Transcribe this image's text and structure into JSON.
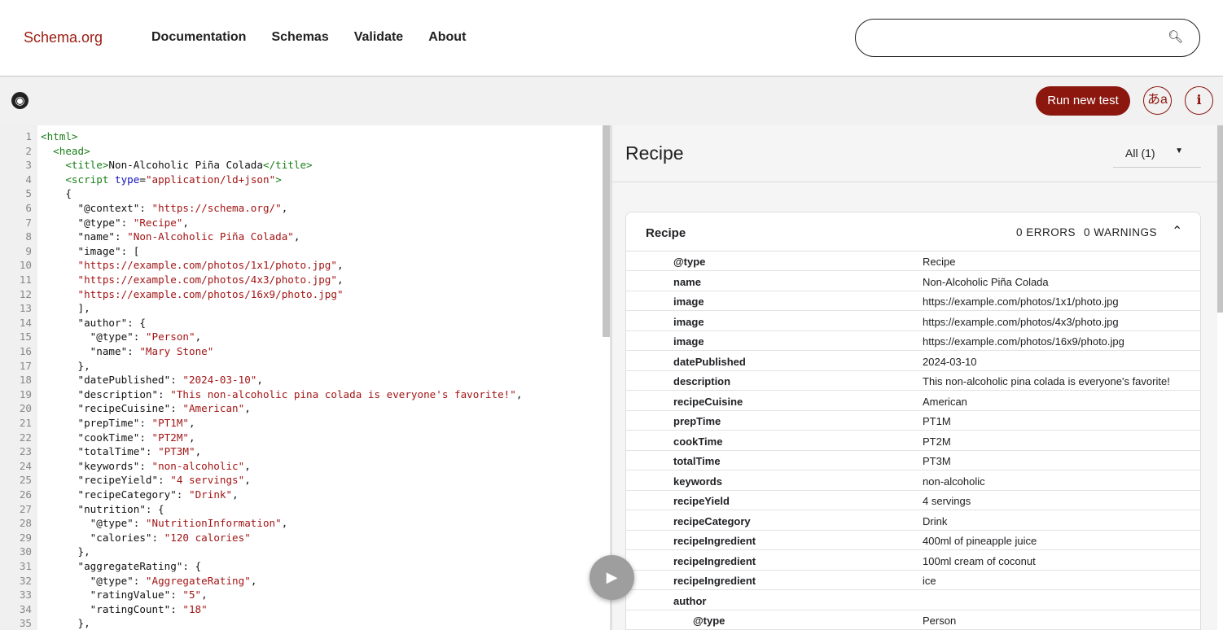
{
  "nav": {
    "logo": "Schema.org",
    "links": [
      "Documentation",
      "Schemas",
      "Validate",
      "About"
    ],
    "search_placeholder": ""
  },
  "toolbar": {
    "run_label": "Run new test",
    "lang_label": "あa",
    "info_label": "i"
  },
  "editor": {
    "lines": [
      [
        [
          "tag",
          "<html>"
        ]
      ],
      [
        [
          "txt",
          "  "
        ],
        [
          "tag",
          "<head>"
        ]
      ],
      [
        [
          "txt",
          "    "
        ],
        [
          "tag",
          "<title>"
        ],
        [
          "txt",
          "Non-Alcoholic Piña Colada"
        ],
        [
          "tag",
          "</title>"
        ]
      ],
      [
        [
          "txt",
          "    "
        ],
        [
          "tag",
          "<script "
        ],
        [
          "attr",
          "type"
        ],
        [
          "txt",
          "="
        ],
        [
          "str",
          "\"application/ld+json\""
        ],
        [
          "tag",
          ">"
        ]
      ],
      [
        [
          "txt",
          "    {"
        ]
      ],
      [
        [
          "txt",
          "      \"@context\": "
        ],
        [
          "str",
          "\"https://schema.org/\""
        ],
        [
          "txt",
          ","
        ]
      ],
      [
        [
          "txt",
          "      \"@type\": "
        ],
        [
          "str",
          "\"Recipe\""
        ],
        [
          "txt",
          ","
        ]
      ],
      [
        [
          "txt",
          "      \"name\": "
        ],
        [
          "str",
          "\"Non-Alcoholic Piña Colada\""
        ],
        [
          "txt",
          ","
        ]
      ],
      [
        [
          "txt",
          "      \"image\": ["
        ]
      ],
      [
        [
          "txt",
          "      "
        ],
        [
          "str",
          "\"https://example.com/photos/1x1/photo.jpg\""
        ],
        [
          "txt",
          ","
        ]
      ],
      [
        [
          "txt",
          "      "
        ],
        [
          "str",
          "\"https://example.com/photos/4x3/photo.jpg\""
        ],
        [
          "txt",
          ","
        ]
      ],
      [
        [
          "txt",
          "      "
        ],
        [
          "str",
          "\"https://example.com/photos/16x9/photo.jpg\""
        ]
      ],
      [
        [
          "txt",
          "      ],"
        ]
      ],
      [
        [
          "txt",
          "      \"author\": {"
        ]
      ],
      [
        [
          "txt",
          "        \"@type\": "
        ],
        [
          "str",
          "\"Person\""
        ],
        [
          "txt",
          ","
        ]
      ],
      [
        [
          "txt",
          "        \"name\": "
        ],
        [
          "str",
          "\"Mary Stone\""
        ]
      ],
      [
        [
          "txt",
          "      },"
        ]
      ],
      [
        [
          "txt",
          "      \"datePublished\": "
        ],
        [
          "str",
          "\"2024-03-10\""
        ],
        [
          "txt",
          ","
        ]
      ],
      [
        [
          "txt",
          "      \"description\": "
        ],
        [
          "str",
          "\"This non-alcoholic pina colada is everyone's favorite!\""
        ],
        [
          "txt",
          ","
        ]
      ],
      [
        [
          "txt",
          "      \"recipeCuisine\": "
        ],
        [
          "str",
          "\"American\""
        ],
        [
          "txt",
          ","
        ]
      ],
      [
        [
          "txt",
          "      \"prepTime\": "
        ],
        [
          "str",
          "\"PT1M\""
        ],
        [
          "txt",
          ","
        ]
      ],
      [
        [
          "txt",
          "      \"cookTime\": "
        ],
        [
          "str",
          "\"PT2M\""
        ],
        [
          "txt",
          ","
        ]
      ],
      [
        [
          "txt",
          "      \"totalTime\": "
        ],
        [
          "str",
          "\"PT3M\""
        ],
        [
          "txt",
          ","
        ]
      ],
      [
        [
          "txt",
          "      \"keywords\": "
        ],
        [
          "str",
          "\"non-alcoholic\""
        ],
        [
          "txt",
          ","
        ]
      ],
      [
        [
          "txt",
          "      \"recipeYield\": "
        ],
        [
          "str",
          "\"4 servings\""
        ],
        [
          "txt",
          ","
        ]
      ],
      [
        [
          "txt",
          "      \"recipeCategory\": "
        ],
        [
          "str",
          "\"Drink\""
        ],
        [
          "txt",
          ","
        ]
      ],
      [
        [
          "txt",
          "      \"nutrition\": {"
        ]
      ],
      [
        [
          "txt",
          "        \"@type\": "
        ],
        [
          "str",
          "\"NutritionInformation\""
        ],
        [
          "txt",
          ","
        ]
      ],
      [
        [
          "txt",
          "        \"calories\": "
        ],
        [
          "str",
          "\"120 calories\""
        ]
      ],
      [
        [
          "txt",
          "      },"
        ]
      ],
      [
        [
          "txt",
          "      \"aggregateRating\": {"
        ]
      ],
      [
        [
          "txt",
          "        \"@type\": "
        ],
        [
          "str",
          "\"AggregateRating\""
        ],
        [
          "txt",
          ","
        ]
      ],
      [
        [
          "txt",
          "        \"ratingValue\": "
        ],
        [
          "str",
          "\"5\""
        ],
        [
          "txt",
          ","
        ]
      ],
      [
        [
          "txt",
          "        \"ratingCount\": "
        ],
        [
          "str",
          "\"18\""
        ]
      ],
      [
        [
          "txt",
          "      },"
        ]
      ]
    ]
  },
  "results": {
    "title": "Recipe",
    "filter": "All (1)",
    "card": {
      "title": "Recipe",
      "errors": "0 ERRORS",
      "warnings": "0 WARNINGS",
      "rows": [
        {
          "k": "@type",
          "v": "Recipe"
        },
        {
          "k": "name",
          "v": "Non-Alcoholic Piña Colada"
        },
        {
          "k": "image",
          "v": "https://example.com/photos/1x1/photo.jpg"
        },
        {
          "k": "image",
          "v": "https://example.com/photos/4x3/photo.jpg"
        },
        {
          "k": "image",
          "v": "https://example.com/photos/16x9/photo.jpg"
        },
        {
          "k": "datePublished",
          "v": "2024-03-10"
        },
        {
          "k": "description",
          "v": "This non-alcoholic pina colada is everyone's favorite!"
        },
        {
          "k": "recipeCuisine",
          "v": "American"
        },
        {
          "k": "prepTime",
          "v": "PT1M"
        },
        {
          "k": "cookTime",
          "v": "PT2M"
        },
        {
          "k": "totalTime",
          "v": "PT3M"
        },
        {
          "k": "keywords",
          "v": "non-alcoholic"
        },
        {
          "k": "recipeYield",
          "v": "4 servings"
        },
        {
          "k": "recipeCategory",
          "v": "Drink"
        },
        {
          "k": "recipeIngredient",
          "v": "400ml of pineapple juice"
        },
        {
          "k": "recipeIngredient",
          "v": "100ml cream of coconut"
        },
        {
          "k": "recipeIngredient",
          "v": "ice"
        },
        {
          "k": "author",
          "v": ""
        },
        {
          "k": "@type",
          "v": "Person",
          "indent": true
        }
      ]
    }
  }
}
